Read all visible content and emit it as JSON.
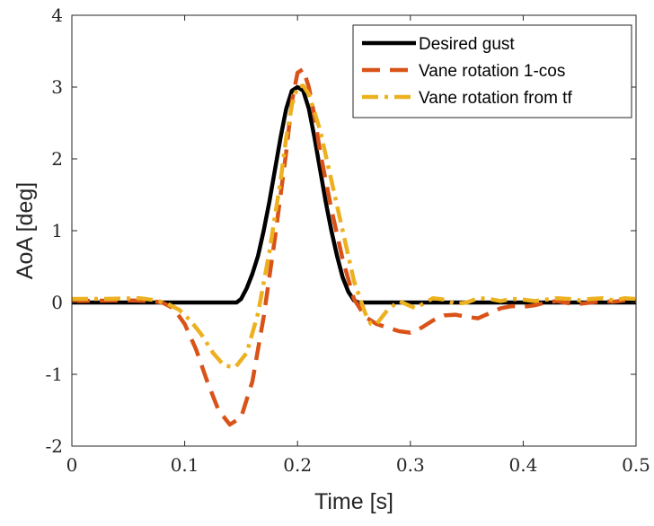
{
  "chart_data": {
    "type": "line",
    "xlabel": "Time [s]",
    "ylabel": "AoA [deg]",
    "xlim": [
      0,
      0.5
    ],
    "ylim": [
      -2,
      4
    ],
    "xticks": [
      0,
      0.1,
      0.2,
      0.3,
      0.4,
      0.5
    ],
    "xtick_labels": [
      "0",
      "0.1",
      "0.2",
      "0.3",
      "0.4",
      "0.5"
    ],
    "yticks": [
      -2,
      -1,
      0,
      1,
      2,
      3,
      4
    ],
    "ytick_labels": [
      "-2",
      "-1",
      "0",
      "1",
      "2",
      "3",
      "4"
    ],
    "grid": false,
    "legend_position": "top-right",
    "series": [
      {
        "name": "Desired gust",
        "color": "#000000",
        "dash": "solid",
        "points": [
          [
            0,
            0
          ],
          [
            0.14,
            0
          ],
          [
            0.146,
            0
          ],
          [
            0.15,
            0.05
          ],
          [
            0.155,
            0.2
          ],
          [
            0.16,
            0.4
          ],
          [
            0.165,
            0.65
          ],
          [
            0.17,
            1.0
          ],
          [
            0.175,
            1.4
          ],
          [
            0.18,
            1.85
          ],
          [
            0.185,
            2.3
          ],
          [
            0.19,
            2.7
          ],
          [
            0.195,
            2.95
          ],
          [
            0.2,
            3.0
          ],
          [
            0.205,
            2.95
          ],
          [
            0.21,
            2.7
          ],
          [
            0.215,
            2.3
          ],
          [
            0.22,
            1.85
          ],
          [
            0.225,
            1.4
          ],
          [
            0.23,
            1.0
          ],
          [
            0.235,
            0.65
          ],
          [
            0.24,
            0.35
          ],
          [
            0.245,
            0.15
          ],
          [
            0.25,
            0.03
          ],
          [
            0.254,
            0
          ],
          [
            0.5,
            0
          ]
        ]
      },
      {
        "name": "Vane rotation 1-cos",
        "color": "#D95319",
        "dash": "dashed",
        "points": [
          [
            0,
            0.02
          ],
          [
            0.05,
            0.03
          ],
          [
            0.07,
            0.02
          ],
          [
            0.08,
            0
          ],
          [
            0.09,
            -0.08
          ],
          [
            0.1,
            -0.3
          ],
          [
            0.11,
            -0.65
          ],
          [
            0.12,
            -1.1
          ],
          [
            0.13,
            -1.5
          ],
          [
            0.14,
            -1.7
          ],
          [
            0.15,
            -1.6
          ],
          [
            0.16,
            -1.1
          ],
          [
            0.17,
            -0.2
          ],
          [
            0.18,
            0.9
          ],
          [
            0.19,
            2.1
          ],
          [
            0.195,
            2.8
          ],
          [
            0.2,
            3.2
          ],
          [
            0.205,
            3.25
          ],
          [
            0.21,
            3.0
          ],
          [
            0.215,
            2.6
          ],
          [
            0.22,
            2.1
          ],
          [
            0.23,
            1.3
          ],
          [
            0.24,
            0.6
          ],
          [
            0.25,
            0.05
          ],
          [
            0.26,
            -0.2
          ],
          [
            0.27,
            -0.3
          ],
          [
            0.28,
            -0.35
          ],
          [
            0.29,
            -0.4
          ],
          [
            0.3,
            -0.42
          ],
          [
            0.31,
            -0.35
          ],
          [
            0.32,
            -0.25
          ],
          [
            0.33,
            -0.18
          ],
          [
            0.34,
            -0.17
          ],
          [
            0.35,
            -0.2
          ],
          [
            0.36,
            -0.22
          ],
          [
            0.37,
            -0.15
          ],
          [
            0.38,
            -0.08
          ],
          [
            0.39,
            -0.05
          ],
          [
            0.4,
            -0.06
          ],
          [
            0.41,
            -0.04
          ],
          [
            0.42,
            0
          ],
          [
            0.43,
            0.02
          ],
          [
            0.44,
            -0.01
          ],
          [
            0.45,
            -0.02
          ],
          [
            0.46,
            0
          ],
          [
            0.47,
            0.02
          ],
          [
            0.48,
            0.01
          ],
          [
            0.49,
            0.03
          ],
          [
            0.5,
            0.02
          ]
        ]
      },
      {
        "name": "Vane rotation from tf",
        "color": "#EDB120",
        "dash": "dashdot",
        "points": [
          [
            0,
            0.05
          ],
          [
            0.03,
            0.05
          ],
          [
            0.06,
            0.06
          ],
          [
            0.075,
            0.03
          ],
          [
            0.085,
            -0.02
          ],
          [
            0.095,
            -0.1
          ],
          [
            0.105,
            -0.25
          ],
          [
            0.115,
            -0.45
          ],
          [
            0.125,
            -0.7
          ],
          [
            0.135,
            -0.88
          ],
          [
            0.145,
            -0.9
          ],
          [
            0.155,
            -0.7
          ],
          [
            0.165,
            -0.15
          ],
          [
            0.175,
            0.7
          ],
          [
            0.185,
            1.7
          ],
          [
            0.19,
            2.3
          ],
          [
            0.195,
            2.75
          ],
          [
            0.2,
            3.0
          ],
          [
            0.205,
            3.02
          ],
          [
            0.21,
            2.9
          ],
          [
            0.22,
            2.4
          ],
          [
            0.23,
            1.7
          ],
          [
            0.24,
            1.0
          ],
          [
            0.25,
            0.3
          ],
          [
            0.26,
            -0.15
          ],
          [
            0.265,
            -0.3
          ],
          [
            0.27,
            -0.3
          ],
          [
            0.28,
            -0.1
          ],
          [
            0.29,
            0.02
          ],
          [
            0.3,
            -0.05
          ],
          [
            0.305,
            -0.08
          ],
          [
            0.31,
            -0.03
          ],
          [
            0.32,
            0.06
          ],
          [
            0.33,
            0.04
          ],
          [
            0.34,
            -0.02
          ],
          [
            0.35,
            0
          ],
          [
            0.36,
            0.06
          ],
          [
            0.37,
            0.05
          ],
          [
            0.38,
            0.02
          ],
          [
            0.39,
            0.05
          ],
          [
            0.4,
            0.04
          ],
          [
            0.41,
            0.02
          ],
          [
            0.42,
            0.04
          ],
          [
            0.43,
            0.06
          ],
          [
            0.44,
            0.05
          ],
          [
            0.45,
            0.03
          ],
          [
            0.46,
            0.05
          ],
          [
            0.47,
            0.06
          ],
          [
            0.48,
            0.03
          ],
          [
            0.49,
            0.06
          ],
          [
            0.5,
            0.05
          ]
        ]
      }
    ]
  }
}
